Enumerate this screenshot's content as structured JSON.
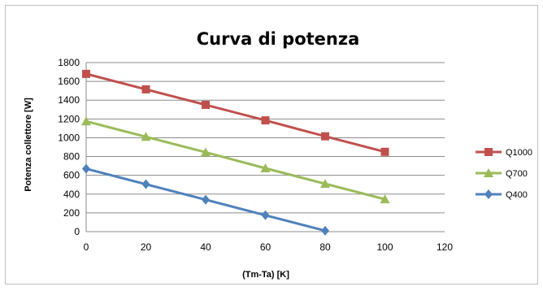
{
  "chart_data": {
    "type": "line",
    "title": "Curva di potenza",
    "xlabel": "(Tm-Ta) [K]",
    "ylabel": "Potenza collettore [W]",
    "xlim": [
      0,
      120
    ],
    "ylim": [
      0,
      1800
    ],
    "x_ticks": [
      0,
      20,
      40,
      60,
      80,
      100,
      120
    ],
    "y_ticks": [
      0,
      200,
      400,
      600,
      800,
      1000,
      1200,
      1400,
      1600,
      1800
    ],
    "grid": "horizontal",
    "legend_position": "right",
    "series": [
      {
        "name": "Q1000",
        "color": "#c0504d",
        "marker": "square",
        "x": [
          0,
          20,
          40,
          60,
          80,
          100
        ],
        "y": [
          1680,
          1515,
          1350,
          1185,
          1015,
          850
        ]
      },
      {
        "name": "Q700",
        "color": "#9bbb59",
        "marker": "triangle",
        "x": [
          0,
          20,
          40,
          60,
          80,
          100
        ],
        "y": [
          1175,
          1010,
          845,
          675,
          510,
          345
        ]
      },
      {
        "name": "Q400",
        "color": "#4f81bd",
        "marker": "diamond",
        "x": [
          0,
          20,
          40,
          60,
          80
        ],
        "y": [
          670,
          505,
          340,
          175,
          10
        ]
      }
    ]
  }
}
